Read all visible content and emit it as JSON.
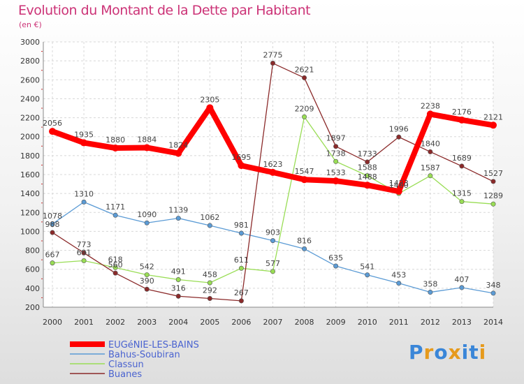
{
  "title": "Evolution du Montant de la Dette par Habitant",
  "subtitle": "(en €)",
  "logo": {
    "text": "Proxiti",
    "letters": [
      "P",
      "r",
      "o",
      "x",
      "i",
      "t",
      "i"
    ],
    "colors": [
      "#3a86d8",
      "#e69a1c",
      "#3a86d8",
      "#e69a1c",
      "#3a86d8",
      "#3a86d8",
      "#e69a1c"
    ]
  },
  "chart_data": {
    "type": "line",
    "title": "Evolution du Montant de la Dette par Habitant",
    "ylabel": "(en €)",
    "xlabel": "",
    "x": [
      "2000",
      "2001",
      "2002",
      "2003",
      "2004",
      "2005",
      "2006",
      "2007",
      "2008",
      "2009",
      "2010",
      "2011",
      "2012",
      "2013",
      "2014"
    ],
    "ylim": [
      200,
      3000
    ],
    "yticks": [
      "200",
      "400",
      "600",
      "800",
      "1000",
      "1200",
      "1400",
      "1600",
      "1800",
      "2000",
      "2200",
      "2400",
      "2600",
      "2800",
      "3000"
    ],
    "grid": true,
    "legend_position": "bottom-left",
    "series": [
      {
        "name": "EUGéNIE-LES-BAINS",
        "color": "#ff0000",
        "values": [
          2056,
          1935,
          1880,
          1884,
          1824,
          2305,
          1695,
          1623,
          1547,
          1533,
          1488,
          1423,
          2238,
          2176,
          2121
        ],
        "labels": [
          "2056",
          "1935",
          "1880",
          "1884",
          "1824",
          "2305",
          "1695",
          "1623",
          "1547",
          "1533",
          "1488",
          "1423",
          "2238",
          "2176",
          "2121"
        ]
      },
      {
        "name": "Bahus-Soubiran",
        "color": "#5b9bd5",
        "values": [
          1078,
          1310,
          1171,
          1090,
          1139,
          1062,
          981,
          903,
          816,
          635,
          541,
          453,
          358,
          407,
          348
        ],
        "labels": [
          "1078",
          "1310",
          "1171",
          "1090",
          "1139",
          "1062",
          "981",
          "903",
          "816",
          "635",
          "541",
          "453",
          "358",
          "407",
          "348"
        ]
      },
      {
        "name": "Classun",
        "color": "#99dd55",
        "values": [
          667,
          691,
          618,
          542,
          491,
          458,
          611,
          577,
          2209,
          1738,
          1588,
          1400,
          1587,
          1315,
          1289
        ],
        "labels": [
          "667",
          "691",
          "618",
          "542",
          "491",
          "458",
          "611",
          "577",
          "2209",
          "1738",
          "1588",
          "1400",
          "1587",
          "1315",
          "1289"
        ]
      },
      {
        "name": "Buanes",
        "color": "#8b2a2a",
        "values": [
          988,
          773,
          560,
          390,
          316,
          292,
          267,
          2775,
          2621,
          1897,
          1733,
          1996,
          1840,
          1689,
          1527
        ],
        "labels": [
          "988",
          "773",
          "560",
          "390",
          "316",
          "292",
          "267",
          "2775",
          "2621",
          "1897",
          "1733",
          "1996",
          "1840",
          "1689",
          "1527"
        ]
      }
    ]
  }
}
